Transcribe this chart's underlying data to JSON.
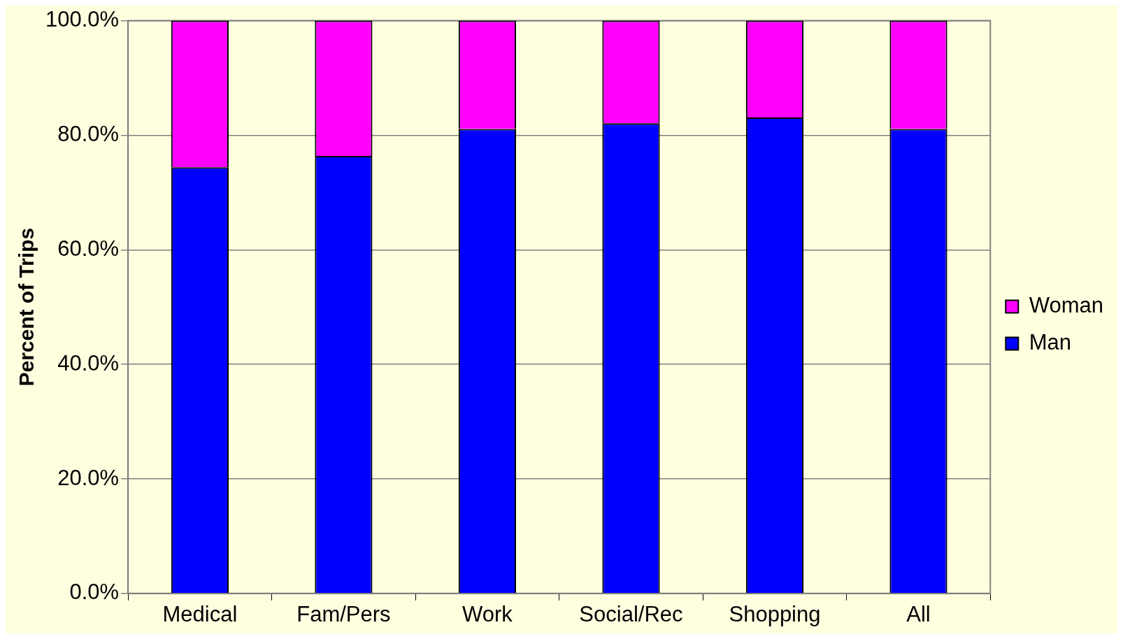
{
  "chart_data": {
    "type": "bar",
    "ylabel": "Percent of Trips",
    "stacked": true,
    "categories": [
      "Medical",
      "Fam/Pers",
      "Work",
      "Social/Rec",
      "Shopping",
      "All"
    ],
    "series": [
      {
        "name": "Man",
        "color": "#0000ff",
        "values": [
          74.4,
          76.4,
          81.1,
          82.1,
          83.1,
          81.1
        ]
      },
      {
        "name": "Woman",
        "color": "#ff00ff",
        "values": [
          25.6,
          23.6,
          18.9,
          17.9,
          16.9,
          18.9
        ]
      }
    ],
    "ylim": [
      0,
      100
    ],
    "yticks": [
      {
        "value": 0,
        "label": "0.0%"
      },
      {
        "value": 20,
        "label": "20.0%"
      },
      {
        "value": 40,
        "label": "40.0%"
      },
      {
        "value": 60,
        "label": "60.0%"
      },
      {
        "value": 80,
        "label": "80.0%"
      },
      {
        "value": 100,
        "label": "100.0%"
      }
    ],
    "grid": "y",
    "legend": "right"
  }
}
